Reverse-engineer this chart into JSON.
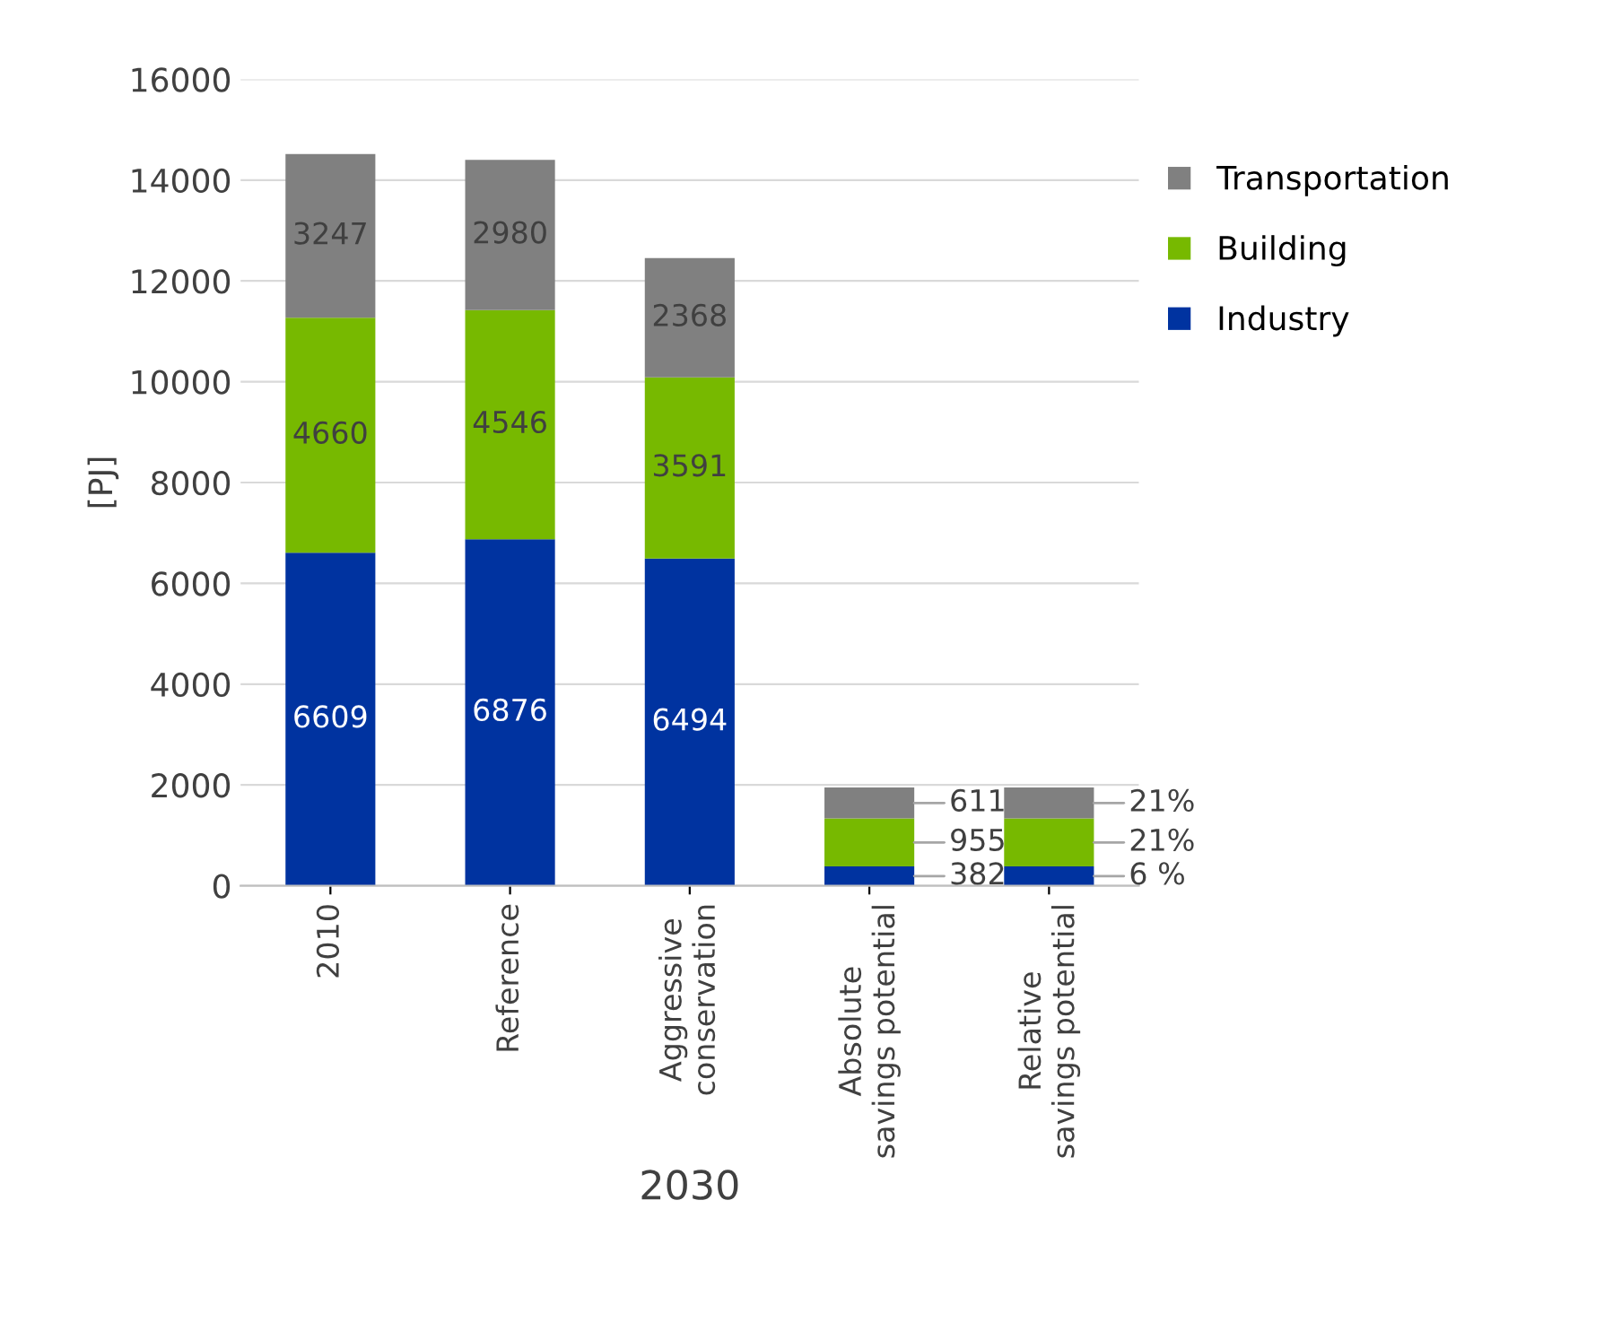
{
  "chart_data": {
    "type": "bar",
    "stacked": true,
    "xlabel": "2030",
    "ylabel": "[PJ]",
    "categories": [
      "2010",
      "Reference",
      "Aggressive\nconservation",
      "Absolute\nsavings potential",
      "Relative\nsavings potential"
    ],
    "series": [
      {
        "name": "Industry",
        "color": "#0033a0",
        "values": [
          6609,
          6876,
          6494,
          382,
          382
        ],
        "value_labels": [
          "6609",
          "6876",
          "6494",
          "382",
          null
        ]
      },
      {
        "name": "Building",
        "color": "#77b900",
        "values": [
          4660,
          4546,
          3591,
          955,
          955
        ],
        "value_labels": [
          "4660",
          "4546",
          "3591",
          "955",
          null
        ]
      },
      {
        "name": "Transportation",
        "color": "#808080",
        "values": [
          3247,
          2980,
          2368,
          611,
          611
        ],
        "value_labels": [
          "3247",
          "2980",
          "2368",
          "611",
          null
        ]
      }
    ],
    "annotations": [
      "6 %",
      "21%",
      "21%"
    ],
    "ylim": [
      0,
      16000
    ],
    "yticks": [
      0,
      2000,
      4000,
      6000,
      8000,
      10000,
      12000,
      14000,
      16000
    ],
    "grid": "y",
    "legend": "right"
  }
}
